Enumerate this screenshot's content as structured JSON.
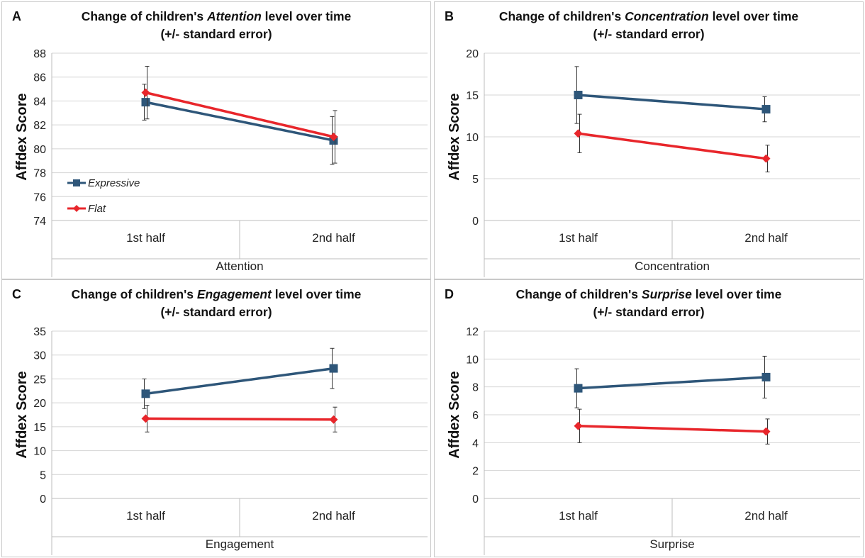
{
  "chart_data": [
    {
      "panel": "A",
      "type": "line",
      "title_pre": "Change of children's ",
      "title_em": "Attention",
      "title_post": " level over time",
      "subtitle": "(+/- standard error)",
      "ylabel": "Affdex Score",
      "xlabel": "Attention",
      "categories": [
        "1st half",
        "2nd half"
      ],
      "ylim": [
        74,
        88
      ],
      "yticks": [
        74,
        76,
        78,
        80,
        82,
        84,
        86,
        88
      ],
      "grid": true,
      "legend": "bottom-left",
      "series": [
        {
          "name": "Expressive",
          "color": "#2e5679",
          "marker": "square",
          "values": [
            83.9,
            80.7
          ],
          "err": [
            1.5,
            2.0
          ]
        },
        {
          "name": "Flat",
          "color": "#e8262b",
          "marker": "diamond",
          "values": [
            84.7,
            81.0
          ],
          "err": [
            2.2,
            2.2
          ]
        }
      ]
    },
    {
      "panel": "B",
      "type": "line",
      "title_pre": "Change of children's ",
      "title_em": "Concentration",
      "title_post": " level over time",
      "subtitle": "(+/-  standard error)",
      "ylabel": "Affdex Score",
      "xlabel": "Concentration",
      "categories": [
        "1st half",
        "2nd half"
      ],
      "ylim": [
        0,
        20
      ],
      "yticks": [
        0,
        5,
        10,
        15,
        20
      ],
      "grid": true,
      "series": [
        {
          "color": "#2e5679",
          "marker": "square",
          "values": [
            15.0,
            13.3
          ],
          "err": [
            3.4,
            1.5
          ]
        },
        {
          "color": "#e8262b",
          "marker": "diamond",
          "values": [
            10.4,
            7.4
          ],
          "err": [
            2.3,
            1.6
          ]
        }
      ]
    },
    {
      "panel": "C",
      "type": "line",
      "title_pre": "Change of children's ",
      "title_em": "Engagement",
      "title_post": " level over time",
      "subtitle": "(+/- standard error)",
      "ylabel": "Affdex Score",
      "xlabel": "Engagement",
      "categories": [
        "1st half",
        "2nd half"
      ],
      "ylim": [
        0,
        35
      ],
      "yticks": [
        0,
        5,
        10,
        15,
        20,
        25,
        30,
        35
      ],
      "grid": true,
      "series": [
        {
          "color": "#2e5679",
          "marker": "square",
          "values": [
            21.9,
            27.2
          ],
          "err": [
            3.1,
            4.2
          ]
        },
        {
          "color": "#e8262b",
          "marker": "diamond",
          "values": [
            16.7,
            16.5
          ],
          "err": [
            2.8,
            2.6
          ]
        }
      ]
    },
    {
      "panel": "D",
      "type": "line",
      "title_pre": "Change of children's ",
      "title_em": "Surprise",
      "title_post": " level over time",
      "subtitle": "(+/- standard error)",
      "ylabel": "Affdex Score",
      "xlabel": "Surprise",
      "categories": [
        "1st half",
        "2nd half"
      ],
      "ylim": [
        0,
        12
      ],
      "yticks": [
        0,
        2,
        4,
        6,
        8,
        10,
        12
      ],
      "grid": true,
      "series": [
        {
          "color": "#2e5679",
          "marker": "square",
          "values": [
            7.9,
            8.7
          ],
          "err": [
            1.4,
            1.5
          ]
        },
        {
          "color": "#e8262b",
          "marker": "diamond",
          "values": [
            5.2,
            4.8
          ],
          "err": [
            1.2,
            0.9
          ]
        }
      ]
    }
  ]
}
